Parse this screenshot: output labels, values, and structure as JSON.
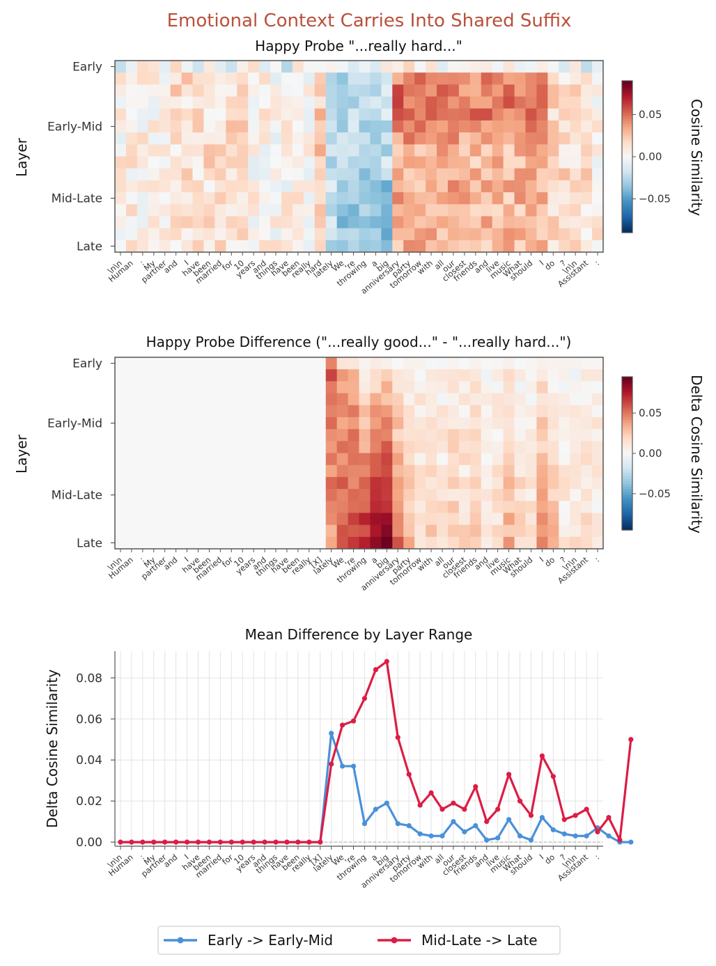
{
  "figure": {
    "title": "Emotional Context Carries Into Shared Suffix"
  },
  "tokens_top": [
    "\\n\\n",
    "Human",
    ":",
    "My",
    "partner",
    "and",
    "I",
    "have",
    "been",
    "married",
    "for",
    "10",
    "years",
    "and",
    "things",
    "have",
    "been",
    "really",
    "hard",
    "lately",
    "We",
    "'re",
    "throwing",
    "a",
    "big",
    "anniversary",
    "party",
    "tomorrow",
    "with",
    "all",
    "our",
    "closest",
    "friends",
    "and",
    "live",
    "music",
    "What",
    "should",
    "I",
    "do",
    "?",
    "\\n\\n",
    "Assistant",
    ":"
  ],
  "tokens_bottom": [
    "\\n\\n",
    "Human",
    ":",
    "My",
    "partner",
    "and",
    "I",
    "have",
    "been",
    "married",
    "for",
    "10",
    "years",
    "and",
    "things",
    "have",
    "been",
    "really",
    "[X]",
    "lately",
    "We",
    "'re",
    "throwing",
    "a",
    "big",
    "anniversary",
    "party",
    "tomorrow",
    "with",
    "all",
    "our",
    "closest",
    "friends",
    "and",
    "live",
    "music",
    "What",
    "should",
    "I",
    "do",
    "?",
    "\\n\\n",
    "Assistant",
    ":"
  ],
  "layer_labels": [
    "Early",
    "Early-Mid",
    "Mid-Late",
    "Late"
  ],
  "colors": {
    "blue": "#4a90d9",
    "red": "#dc1c44",
    "title": "#b9503a"
  },
  "chart_data": [
    {
      "type": "heatmap",
      "title": "Happy Probe \"...really hard...\"",
      "ylabel": "Layer",
      "colorbar_label": "Cosine Similarity",
      "colorbar_ticks": [
        "0.05",
        "0.00",
        "−0.05"
      ],
      "colorbar_tick_values": [
        0.05,
        0.0,
        -0.05
      ],
      "vmin": -0.09,
      "vmax": 0.09,
      "colormap": "RdBu_r",
      "rows": 16
    },
    {
      "type": "heatmap",
      "title": "Happy Probe Difference (\"...really good...\" - \"...really hard...\")",
      "ylabel": "Layer",
      "colorbar_label": "Delta Cosine Similarity",
      "colorbar_ticks": [
        "0.05",
        "0.00",
        "−0.05"
      ],
      "colorbar_tick_values": [
        0.05,
        0.0,
        -0.05
      ],
      "vmin": -0.095,
      "vmax": 0.095,
      "colormap": "RdBu_r",
      "rows": 16
    },
    {
      "type": "line",
      "title": "Mean Difference by Layer Range",
      "ylabel": "Delta Cosine Similarity",
      "ylim": [
        -0.002,
        0.093
      ],
      "yticks": [
        "0.00",
        "0.02",
        "0.04",
        "0.06",
        "0.08"
      ],
      "ytick_values": [
        0.0,
        0.02,
        0.04,
        0.06,
        0.08
      ],
      "grid": true,
      "legend_position": "bottom",
      "series": [
        {
          "name": "Early -> Early-Mid",
          "color": "#4a90d9",
          "values": [
            0,
            0,
            0,
            0,
            0,
            0,
            0,
            0,
            0,
            0,
            0,
            0,
            0,
            0,
            0,
            0,
            0,
            0,
            0,
            0.053,
            0.037,
            0.037,
            0.009,
            0.016,
            0.019,
            0.009,
            0.008,
            0.004,
            0.003,
            0.003,
            0.01,
            0.005,
            0.008,
            0.001,
            0.002,
            0.011,
            0.003,
            0.001,
            0.012,
            0.006,
            0.004,
            0.003,
            0.003,
            0.007,
            0.003,
            0.0,
            0.0
          ]
        },
        {
          "name": "Mid-Late -> Late",
          "color": "#dc1c44",
          "values": [
            0,
            0,
            0,
            0,
            0,
            0,
            0,
            0,
            0,
            0,
            0,
            0,
            0,
            0,
            0,
            0,
            0,
            0,
            0,
            0.038,
            0.057,
            0.059,
            0.07,
            0.084,
            0.088,
            0.051,
            0.033,
            0.018,
            0.024,
            0.016,
            0.019,
            0.016,
            0.027,
            0.01,
            0.016,
            0.033,
            0.02,
            0.013,
            0.042,
            0.032,
            0.011,
            0.013,
            0.016,
            0.005,
            0.012,
            0.001,
            0.05
          ]
        }
      ]
    }
  ]
}
